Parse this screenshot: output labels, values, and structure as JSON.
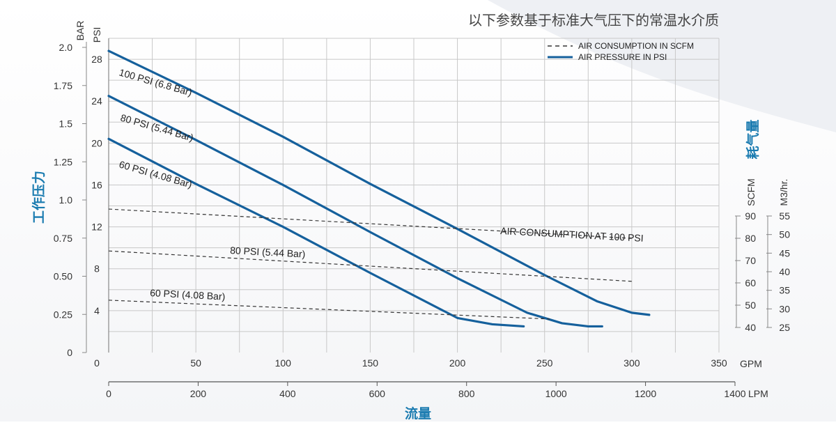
{
  "title": "以下参数基于标准大气压下的常温水介质",
  "colors": {
    "pressure": "#15609c",
    "consumption": "#333333",
    "grid": "#c8c8c8",
    "accent": "#1a7bb0"
  },
  "axes": {
    "bar_unit": "BAR",
    "psi_unit": "PSI",
    "scfm_unit": "SCFM",
    "m3_unit": "M3/hr.",
    "gpm_unit": "GPM",
    "lpm_unit": "LPM",
    "y_title_cn": "工作压力",
    "x_title_cn": "流量",
    "right_title_cn": "耗气量",
    "bar_ticks": [
      "2.0",
      "1.75",
      "1.5",
      "1.25",
      "1.0",
      "0.75",
      "0.50",
      "0.25",
      "0"
    ],
    "psi_ticks": [
      "28",
      "24",
      "20",
      "16",
      "12",
      "8",
      "4"
    ],
    "gpm_ticks": [
      "0",
      "50",
      "100",
      "150",
      "200",
      "250",
      "300",
      "350"
    ],
    "lpm_ticks": [
      "0",
      "200",
      "400",
      "600",
      "800",
      "1000",
      "1200",
      "1400"
    ],
    "scfm_ticks": [
      "90",
      "80",
      "70",
      "60",
      "50",
      "40"
    ],
    "m3_ticks": [
      "55",
      "50",
      "45",
      "40",
      "35",
      "30",
      "25"
    ]
  },
  "legend": {
    "consumption": "AIR CONSUMPTION IN SCFM",
    "pressure": "AIR PRESSURE IN PSI"
  },
  "chart_data": {
    "type": "line",
    "xlabel": "流量",
    "ylabel": "工作压力",
    "x_unit": "GPM",
    "y_unit": "PSI",
    "xlim": [
      0,
      350
    ],
    "ylim": [
      0,
      30
    ],
    "grid": true,
    "legend_position": "top-right",
    "series": [
      {
        "name": "100 PSI (6.8 Bar)",
        "kind": "pressure",
        "label": "100 PSI (6.8 Bar)",
        "x": [
          0,
          50,
          100,
          150,
          200,
          250,
          280,
          300,
          310
        ],
        "y": [
          28.8,
          24.8,
          20.6,
          16.1,
          11.8,
          7.4,
          4.9,
          3.8,
          3.6
        ]
      },
      {
        "name": "80 PSI (5.44 Bar)",
        "kind": "pressure",
        "label": "80 PSI (5.44 Bar)",
        "x": [
          0,
          50,
          100,
          150,
          200,
          240,
          260,
          275,
          283
        ],
        "y": [
          24.5,
          20.3,
          16.0,
          11.5,
          7.1,
          3.8,
          2.8,
          2.5,
          2.5
        ]
      },
      {
        "name": "60 PSI (4.08 Bar)",
        "kind": "pressure",
        "label": "60 PSI (4.08 Bar)",
        "x": [
          0,
          50,
          100,
          150,
          200,
          220,
          238
        ],
        "y": [
          20.4,
          16.1,
          12.0,
          7.6,
          3.3,
          2.7,
          2.5
        ]
      },
      {
        "name": "AIR CONSUMPTION AT 100 PSI",
        "kind": "consumption",
        "label": "AIR CONSUMPTION AT 100 PSI",
        "x": [
          0,
          300
        ],
        "y": [
          13.7,
          10.9
        ]
      },
      {
        "name": "80 PSI (5.44 Bar)",
        "kind": "consumption",
        "label": "80 PSI (5.44 Bar)",
        "x": [
          0,
          300
        ],
        "y": [
          9.7,
          6.8
        ]
      },
      {
        "name": "60 PSI (4.08 Bar)",
        "kind": "consumption",
        "label": "60 PSI (4.08 Bar)",
        "x": [
          0,
          253
        ],
        "y": [
          5.0,
          3.2
        ]
      }
    ]
  }
}
